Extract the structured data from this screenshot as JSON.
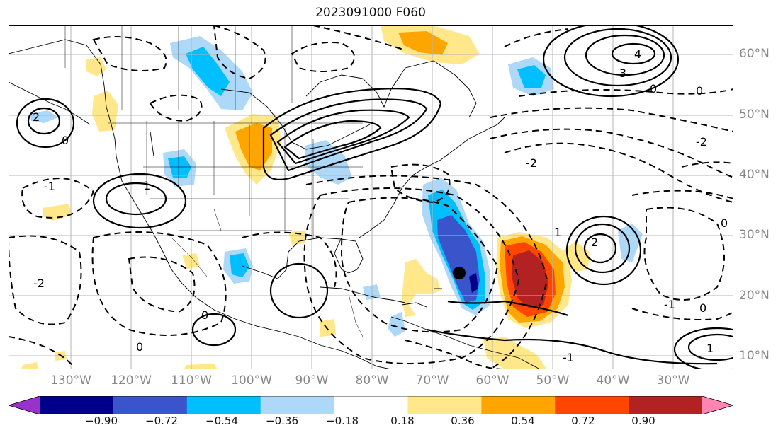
{
  "title": "2023091000 F060",
  "lat_labels": [
    {
      "text": "60°N",
      "lat": 60
    },
    {
      "text": "50°N",
      "lat": 50
    },
    {
      "text": "40°N",
      "lat": 40
    },
    {
      "text": "30°N",
      "lat": 30
    },
    {
      "text": "20°N",
      "lat": 20
    },
    {
      "text": "10°N",
      "lat": 10
    }
  ],
  "lon_labels": [
    {
      "text": "130°W",
      "lon": -130
    },
    {
      "text": "120°W",
      "lon": -120
    },
    {
      "text": "110°W",
      "lon": -110
    },
    {
      "text": "100°W",
      "lon": -100
    },
    {
      "text": "90°W",
      "lon": -90
    },
    {
      "text": "80°W",
      "lon": -80
    },
    {
      "text": "70°W",
      "lon": -70
    },
    {
      "text": "60°W",
      "lon": -60
    },
    {
      "text": "50°W",
      "lon": -50
    },
    {
      "text": "40°W",
      "lon": -40
    },
    {
      "text": "30°W",
      "lon": -30
    }
  ],
  "colorbar": {
    "ticks": [
      "−0.90",
      "−0.72",
      "−0.54",
      "−0.36",
      "−0.18",
      "0.18",
      "0.36",
      "0.54",
      "0.72",
      "0.90"
    ],
    "colors": [
      "#9932cc",
      "#00008b",
      "#3a55cc",
      "#00bfff",
      "#add8f8",
      "#ffffff",
      "#ffe78a",
      "#ffa500",
      "#ff4500",
      "#b22222",
      "#ff85b3"
    ]
  },
  "storm_marker": {
    "lon": -65.5,
    "lat": 23.5,
    "color": "#000000"
  },
  "contour_labels": [
    "4",
    "3",
    "2",
    "2",
    "1",
    "1",
    "1",
    "0",
    "0",
    "0",
    "0",
    "0",
    "0",
    "0",
    "-1",
    "-1",
    "-1",
    "-2",
    "-2",
    "-2"
  ]
}
